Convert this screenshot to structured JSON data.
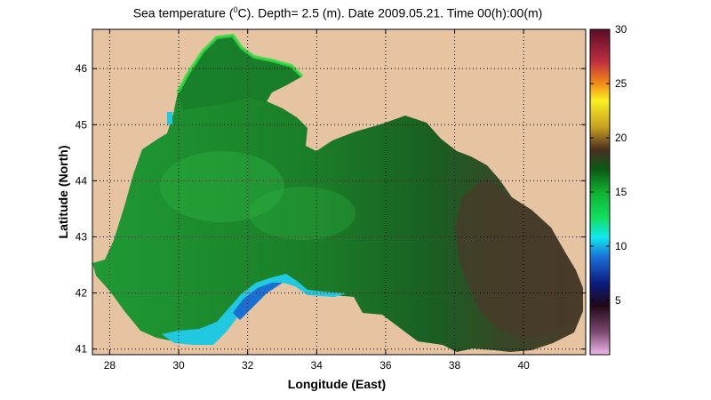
{
  "title": {
    "prefix": "Sea temperature (",
    "sup": "0",
    "suffix": "C). Depth=  2.5 (m). Date 2009.05.21. Time 00(h):00(m)"
  },
  "axes": {
    "xlabel": "Longitude (East)",
    "ylabel": "Latitude (North)",
    "xlim": [
      27.5,
      41.8
    ],
    "ylim": [
      40.9,
      46.7
    ],
    "xticks": [
      28,
      30,
      32,
      34,
      36,
      38,
      40
    ],
    "yticks": [
      41,
      42,
      43,
      44,
      45,
      46
    ],
    "grid": "dotted"
  },
  "colorbar": {
    "min": 0,
    "max": 30,
    "ticks": [
      5,
      10,
      15,
      20,
      25,
      30
    ]
  },
  "colors": {
    "land": "#e6c4a2",
    "sea_main": "#1e8c2e",
    "sea_dark": "#0f5e1e",
    "sea_warm": "#4a3a2a",
    "cold": "#20c0e0"
  }
}
